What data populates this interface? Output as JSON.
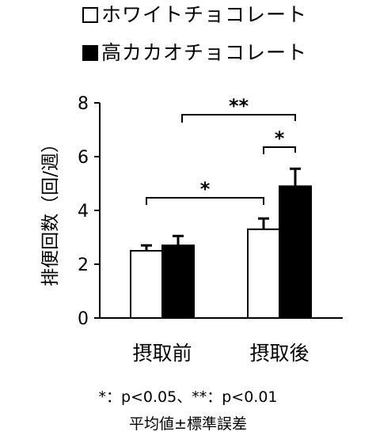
{
  "chart_data": {
    "type": "bar",
    "categories": [
      "摂取前",
      "摂取後"
    ],
    "series": [
      {
        "name": "ホワイトチョコレート",
        "color": "#ffffff",
        "values": [
          2.5,
          3.3
        ],
        "errors": [
          0.2,
          0.4
        ]
      },
      {
        "name": "高カカオチョコレート",
        "color": "#000000",
        "values": [
          2.7,
          4.9
        ],
        "errors": [
          0.35,
          0.65
        ]
      }
    ],
    "ylabel": "排便回数（回/週）",
    "xlabel": "",
    "ylim": [
      0,
      8
    ],
    "yticks": [
      "0",
      "2",
      "4",
      "6",
      "8"
    ],
    "grid": false,
    "legend_position": "top",
    "significance": [
      {
        "label": "**",
        "from": "ホワイトチョコレート・摂取前",
        "to": "高カカオチョコレート・摂取後"
      },
      {
        "label": "*",
        "from": "ホワイトチョコレート・摂取後",
        "to": "高カカオチョコレート・摂取後"
      },
      {
        "label": "*",
        "from": "ホワイトチョコレート・摂取前",
        "to": "ホワイトチョコレート・摂取後"
      }
    ]
  },
  "footnote": {
    "significance": "*：p<0.05、**：p<0.01",
    "error_note": "平均値±標準誤差"
  }
}
